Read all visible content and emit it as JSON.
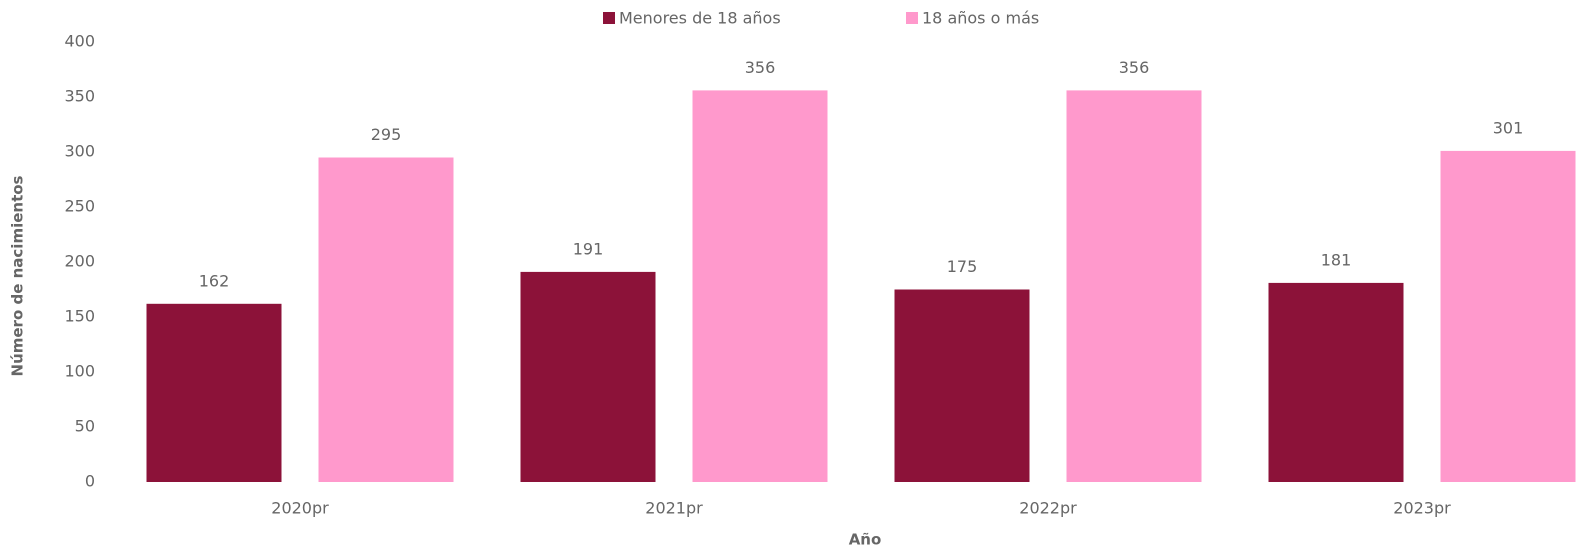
{
  "chart_data": {
    "type": "bar",
    "categories": [
      "2020pr",
      "2021pr",
      "2022pr",
      "2023pr"
    ],
    "series": [
      {
        "name": "Menores de 18 años",
        "color": "#8c1239",
        "values": [
          162,
          191,
          175,
          181
        ]
      },
      {
        "name": "18 años o más",
        "color": "#ff99cc",
        "values": [
          295,
          356,
          356,
          301
        ]
      }
    ],
    "ylim": [
      0,
      400
    ],
    "yticks": [
      0,
      50,
      100,
      150,
      200,
      250,
      300,
      350,
      400
    ],
    "xlabel": "Año",
    "ylabel": "Número de nacimientos",
    "grid": false
  }
}
